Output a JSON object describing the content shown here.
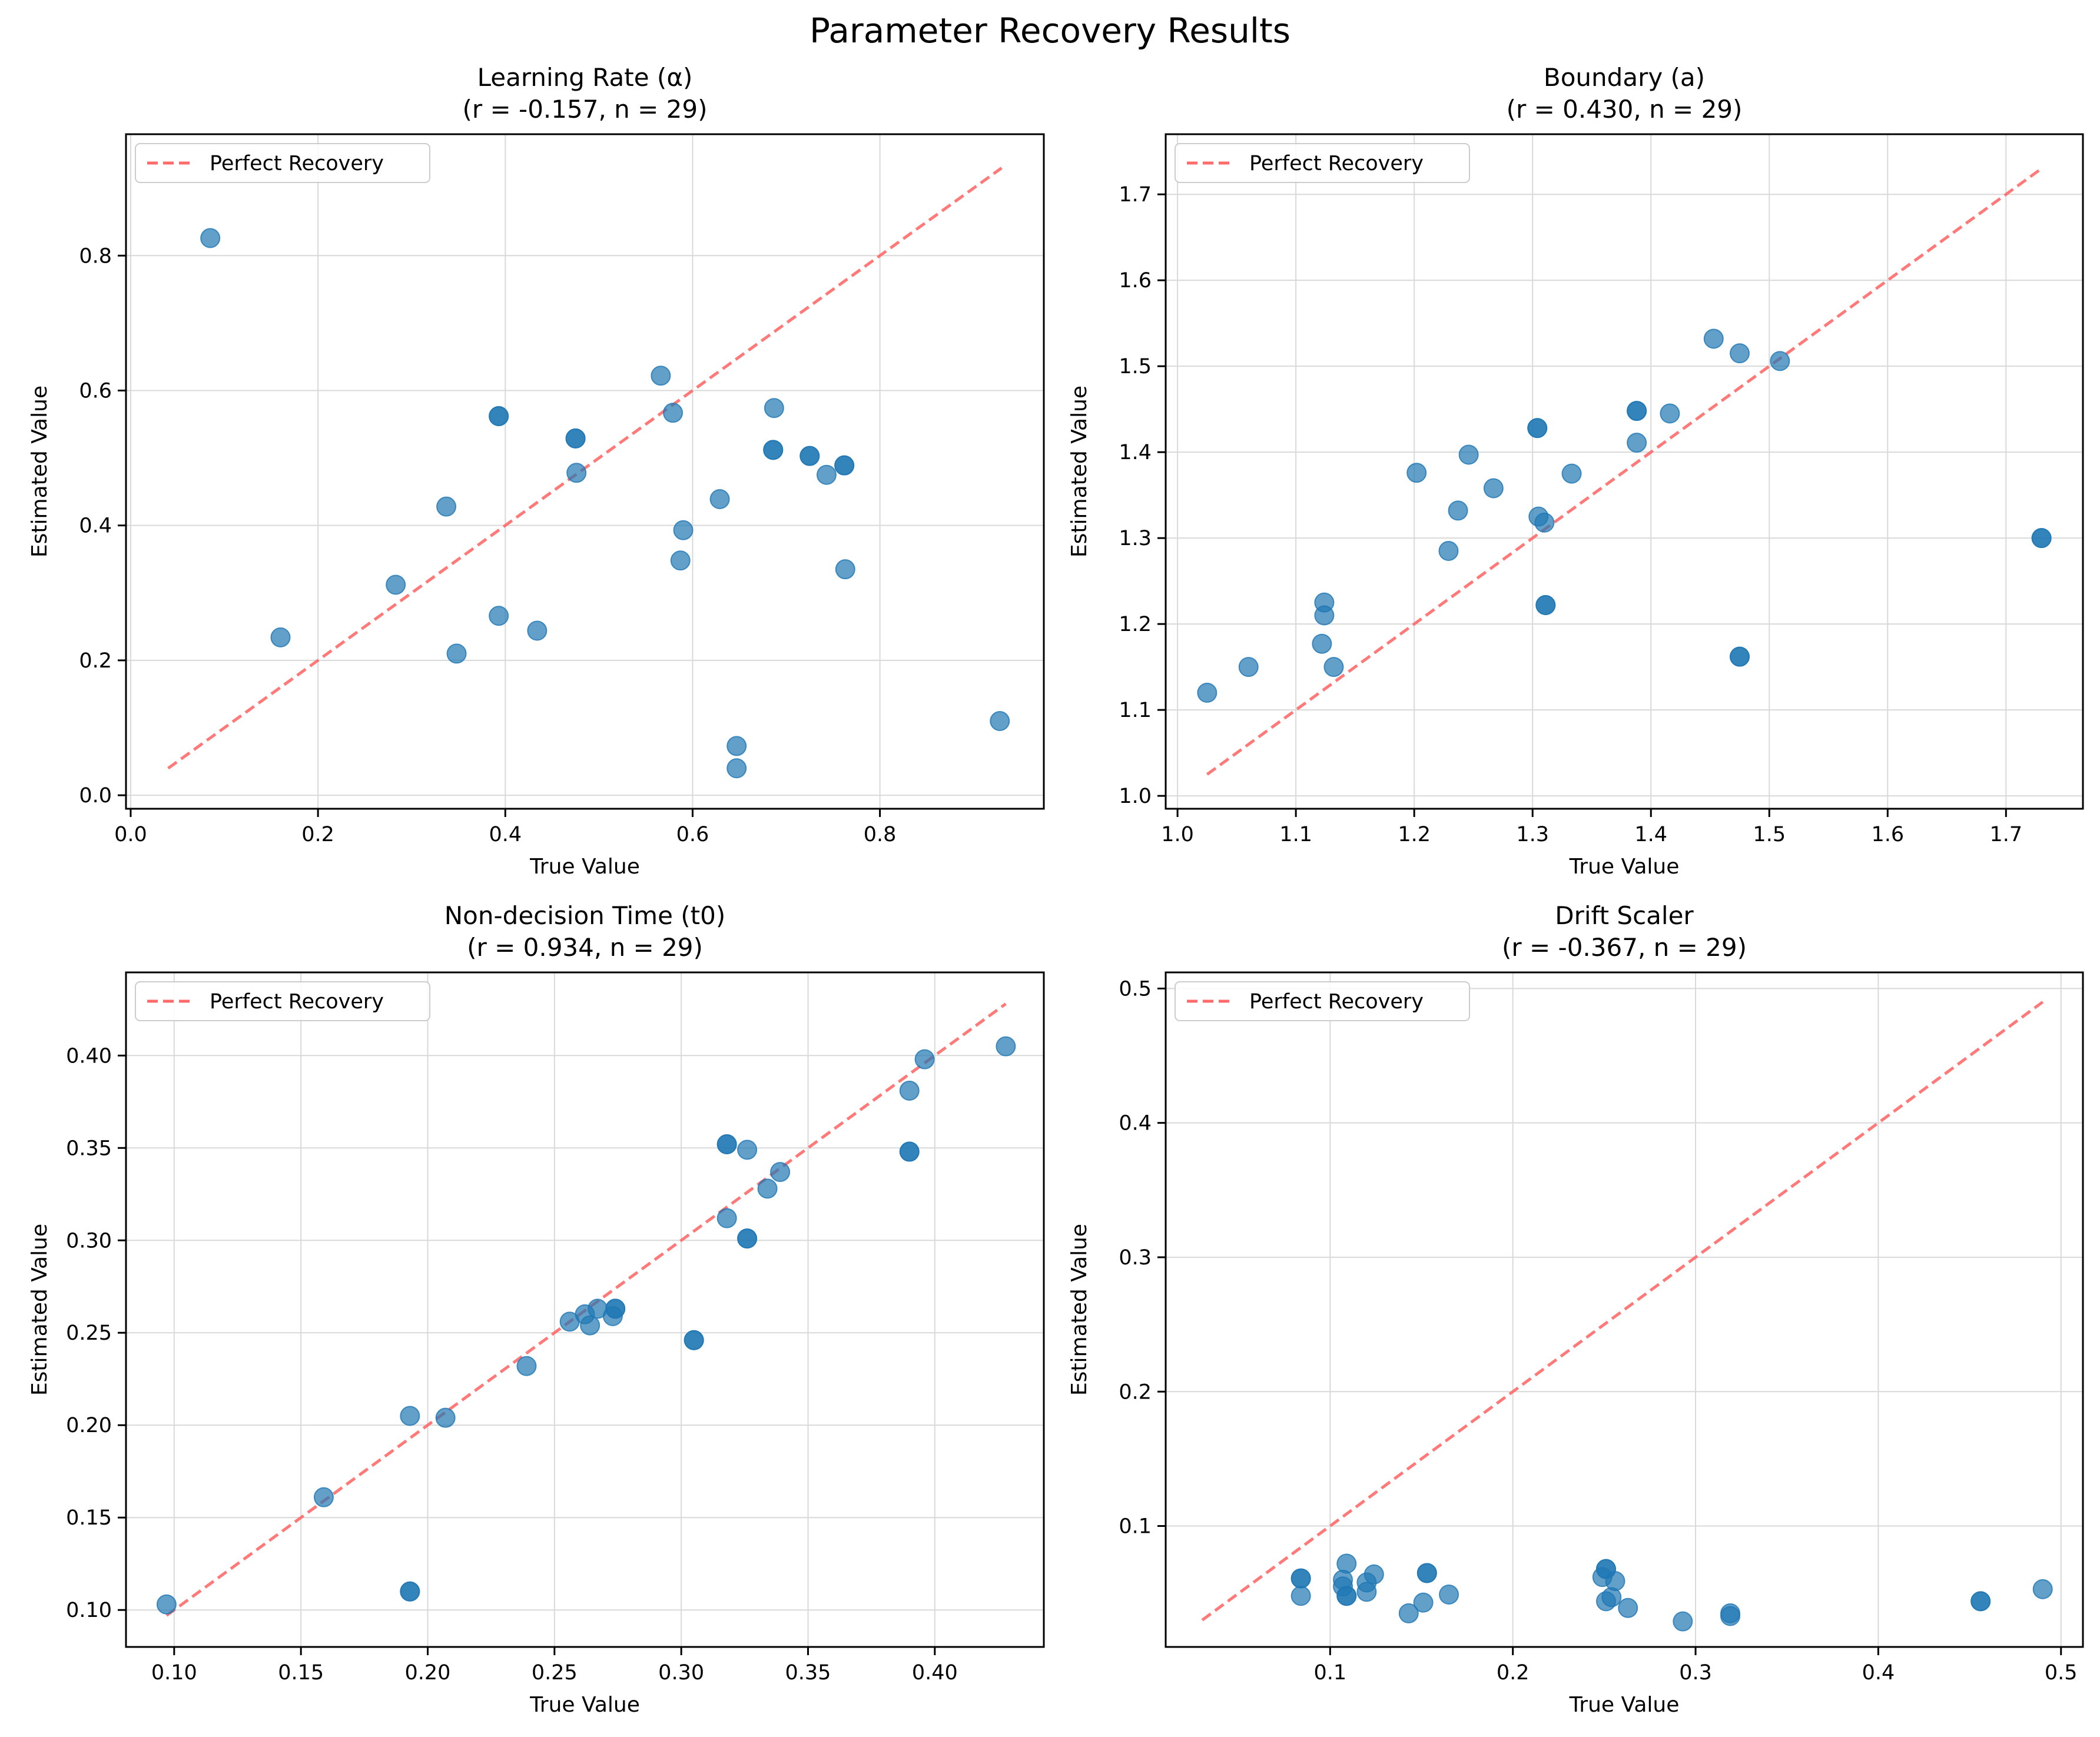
{
  "figure": {
    "suptitle": "Parameter Recovery Results"
  },
  "colors": {
    "points": "#1f77b4",
    "reference_line": "#ff6b6b",
    "grid": "#d9d9d9"
  },
  "chart_data": [
    {
      "type": "scatter",
      "title": "Learning Rate (α)",
      "subtitle": "(r = -0.157, n = 29)",
      "xlabel": "True Value",
      "ylabel": "Estimated Value",
      "xlim": [
        -0.005,
        0.975
      ],
      "ylim": [
        -0.02,
        0.98
      ],
      "xticks": [
        0.0,
        0.2,
        0.4,
        0.6,
        0.8
      ],
      "yticks": [
        0.0,
        0.2,
        0.4,
        0.6,
        0.8
      ],
      "tick_decimals": 1,
      "grid": true,
      "legend": {
        "position": "upper-left",
        "entries": [
          "Perfect Recovery"
        ]
      },
      "reference_line": {
        "name": "Perfect Recovery",
        "from": [
          0.04,
          0.04
        ],
        "to": [
          0.93,
          0.93
        ]
      },
      "points": [
        [
          0.085,
          0.826
        ],
        [
          0.16,
          0.234
        ],
        [
          0.283,
          0.312
        ],
        [
          0.337,
          0.428
        ],
        [
          0.348,
          0.21
        ],
        [
          0.393,
          0.562
        ],
        [
          0.393,
          0.562
        ],
        [
          0.393,
          0.266
        ],
        [
          0.434,
          0.244
        ],
        [
          0.475,
          0.529
        ],
        [
          0.475,
          0.529
        ],
        [
          0.476,
          0.478
        ],
        [
          0.566,
          0.622
        ],
        [
          0.579,
          0.567
        ],
        [
          0.587,
          0.348
        ],
        [
          0.59,
          0.393
        ],
        [
          0.629,
          0.439
        ],
        [
          0.647,
          0.073
        ],
        [
          0.647,
          0.04
        ],
        [
          0.686,
          0.512
        ],
        [
          0.686,
          0.512
        ],
        [
          0.687,
          0.574
        ],
        [
          0.725,
          0.503
        ],
        [
          0.725,
          0.503
        ],
        [
          0.743,
          0.475
        ],
        [
          0.762,
          0.489
        ],
        [
          0.762,
          0.489
        ],
        [
          0.763,
          0.335
        ],
        [
          0.928,
          0.11
        ]
      ]
    },
    {
      "type": "scatter",
      "title": "Boundary (a)",
      "subtitle": "(r = 0.430, n = 29)",
      "xlabel": "True Value",
      "ylabel": "Estimated Value",
      "xlim": [
        0.99,
        1.765
      ],
      "ylim": [
        0.985,
        1.77
      ],
      "xticks": [
        1.0,
        1.1,
        1.2,
        1.3,
        1.4,
        1.5,
        1.6,
        1.7
      ],
      "yticks": [
        1.0,
        1.1,
        1.2,
        1.3,
        1.4,
        1.5,
        1.6,
        1.7
      ],
      "tick_decimals": 1,
      "grid": true,
      "legend": {
        "position": "upper-left",
        "entries": [
          "Perfect Recovery"
        ]
      },
      "reference_line": {
        "name": "Perfect Recovery",
        "from": [
          1.025,
          1.025
        ],
        "to": [
          1.73,
          1.73
        ]
      },
      "points": [
        [
          1.025,
          1.12
        ],
        [
          1.06,
          1.15
        ],
        [
          1.122,
          1.177
        ],
        [
          1.124,
          1.225
        ],
        [
          1.124,
          1.21
        ],
        [
          1.132,
          1.15
        ],
        [
          1.202,
          1.376
        ],
        [
          1.229,
          1.285
        ],
        [
          1.237,
          1.332
        ],
        [
          1.246,
          1.397
        ],
        [
          1.267,
          1.358
        ],
        [
          1.304,
          1.428
        ],
        [
          1.304,
          1.428
        ],
        [
          1.305,
          1.325
        ],
        [
          1.31,
          1.318
        ],
        [
          1.311,
          1.222
        ],
        [
          1.311,
          1.222
        ],
        [
          1.333,
          1.375
        ],
        [
          1.388,
          1.448
        ],
        [
          1.388,
          1.448
        ],
        [
          1.388,
          1.411
        ],
        [
          1.416,
          1.445
        ],
        [
          1.453,
          1.532
        ],
        [
          1.475,
          1.515
        ],
        [
          1.475,
          1.162
        ],
        [
          1.475,
          1.162
        ],
        [
          1.509,
          1.506
        ],
        [
          1.73,
          1.3
        ],
        [
          1.73,
          1.3
        ]
      ]
    },
    {
      "type": "scatter",
      "title": "Non-decision Time (t0)",
      "subtitle": "(r = 0.934, n = 29)",
      "xlabel": "True Value",
      "ylabel": "Estimated Value",
      "xlim": [
        0.081,
        0.443
      ],
      "ylim": [
        0.08,
        0.445
      ],
      "xticks": [
        0.1,
        0.15,
        0.2,
        0.25,
        0.3,
        0.35,
        0.4
      ],
      "yticks": [
        0.1,
        0.15,
        0.2,
        0.25,
        0.3,
        0.35,
        0.4
      ],
      "tick_decimals": 2,
      "grid": true,
      "legend": {
        "position": "upper-left",
        "entries": [
          "Perfect Recovery"
        ]
      },
      "reference_line": {
        "name": "Perfect Recovery",
        "from": [
          0.097,
          0.097
        ],
        "to": [
          0.428,
          0.428
        ]
      },
      "points": [
        [
          0.097,
          0.103
        ],
        [
          0.159,
          0.161
        ],
        [
          0.193,
          0.205
        ],
        [
          0.193,
          0.11
        ],
        [
          0.193,
          0.11
        ],
        [
          0.207,
          0.204
        ],
        [
          0.239,
          0.232
        ],
        [
          0.256,
          0.256
        ],
        [
          0.262,
          0.26
        ],
        [
          0.264,
          0.254
        ],
        [
          0.267,
          0.263
        ],
        [
          0.273,
          0.259
        ],
        [
          0.274,
          0.263
        ],
        [
          0.274,
          0.263
        ],
        [
          0.305,
          0.246
        ],
        [
          0.305,
          0.246
        ],
        [
          0.318,
          0.352
        ],
        [
          0.318,
          0.352
        ],
        [
          0.318,
          0.312
        ],
        [
          0.326,
          0.349
        ],
        [
          0.326,
          0.301
        ],
        [
          0.326,
          0.301
        ],
        [
          0.334,
          0.328
        ],
        [
          0.339,
          0.337
        ],
        [
          0.39,
          0.381
        ],
        [
          0.39,
          0.348
        ],
        [
          0.39,
          0.348
        ],
        [
          0.396,
          0.398
        ],
        [
          0.428,
          0.405
        ]
      ]
    },
    {
      "type": "scatter",
      "title": "Drift Scaler",
      "subtitle": "(r = -0.367, n = 29)",
      "xlabel": "True Value",
      "ylabel": "Estimated Value",
      "xlim": [
        0.01,
        0.512
      ],
      "ylim": [
        0.01,
        0.512
      ],
      "xticks": [
        0.1,
        0.2,
        0.3,
        0.4,
        0.5
      ],
      "yticks": [
        0.1,
        0.2,
        0.3,
        0.4,
        0.5
      ],
      "tick_decimals": 1,
      "grid": true,
      "legend": {
        "position": "upper-left",
        "entries": [
          "Perfect Recovery"
        ]
      },
      "reference_line": {
        "name": "Perfect Recovery",
        "from": [
          0.03,
          0.03
        ],
        "to": [
          0.49,
          0.49
        ]
      },
      "points": [
        [
          0.084,
          0.061
        ],
        [
          0.084,
          0.061
        ],
        [
          0.084,
          0.048
        ],
        [
          0.107,
          0.06
        ],
        [
          0.107,
          0.055
        ],
        [
          0.109,
          0.072
        ],
        [
          0.109,
          0.048
        ],
        [
          0.109,
          0.048
        ],
        [
          0.12,
          0.058
        ],
        [
          0.12,
          0.051
        ],
        [
          0.124,
          0.064
        ],
        [
          0.143,
          0.035
        ],
        [
          0.151,
          0.043
        ],
        [
          0.153,
          0.065
        ],
        [
          0.153,
          0.065
        ],
        [
          0.165,
          0.049
        ],
        [
          0.249,
          0.062
        ],
        [
          0.251,
          0.068
        ],
        [
          0.251,
          0.068
        ],
        [
          0.251,
          0.044
        ],
        [
          0.254,
          0.047
        ],
        [
          0.256,
          0.059
        ],
        [
          0.263,
          0.039
        ],
        [
          0.293,
          0.029
        ],
        [
          0.319,
          0.035
        ],
        [
          0.319,
          0.033
        ],
        [
          0.456,
          0.044
        ],
        [
          0.49,
          0.053
        ],
        [
          0.456,
          0.044
        ]
      ]
    }
  ]
}
